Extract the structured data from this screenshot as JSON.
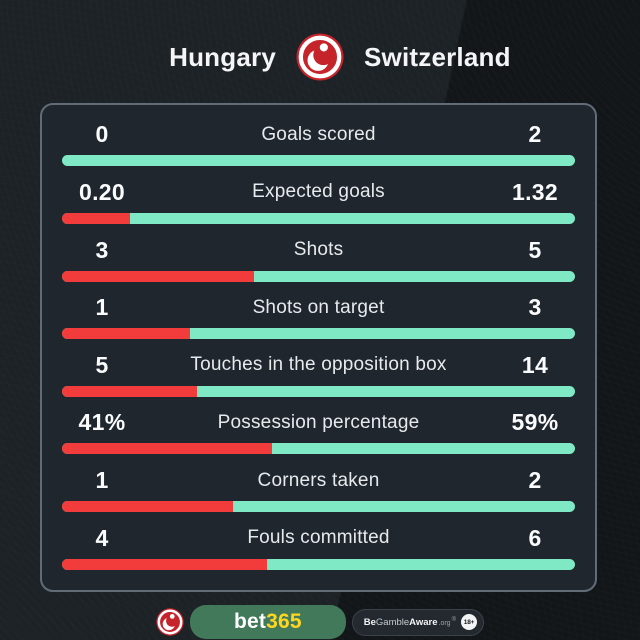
{
  "header": {
    "home_team": "Hungary",
    "away_team": "Switzerland"
  },
  "colors": {
    "home_bar": "#f23c3c",
    "away_bar": "#7fe9c5",
    "card_bg": "#1f262d",
    "card_border": "#626c76",
    "brand_red": "#c5242b",
    "brand_green": "#41795a",
    "brand_yellow": "#ffd61f"
  },
  "stats": [
    {
      "label": "Goals scored",
      "home": "0",
      "away": "2"
    },
    {
      "label": "Expected goals",
      "home": "0.20",
      "away": "1.32"
    },
    {
      "label": "Shots",
      "home": "3",
      "away": "5"
    },
    {
      "label": "Shots on target",
      "home": "1",
      "away": "3"
    },
    {
      "label": "Touches in the opposition box",
      "home": "5",
      "away": "14"
    },
    {
      "label": "Possession percentage",
      "home": "41%",
      "away": "59%"
    },
    {
      "label": "Corners taken",
      "home": "1",
      "away": "2"
    },
    {
      "label": "Fouls committed",
      "home": "4",
      "away": "6"
    }
  ],
  "footer": {
    "bet365_bet": "bet",
    "bet365_365": "365",
    "aware_be": "Be",
    "aware_gamble": "Gamble",
    "aware_aware": "Aware",
    "aware_org": ".org",
    "aware_reg": "®",
    "age_badge": "18+"
  },
  "chart_data": {
    "type": "bar",
    "orientation": "horizontal-paired",
    "title": "Hungary vs Switzerland match statistics",
    "categories": [
      "Goals scored",
      "Expected goals",
      "Shots",
      "Shots on target",
      "Touches in the opposition box",
      "Possession percentage",
      "Corners taken",
      "Fouls committed"
    ],
    "series": [
      {
        "name": "Hungary",
        "color": "#f23c3c",
        "values": [
          0,
          0.2,
          3,
          1,
          5,
          41,
          1,
          4
        ]
      },
      {
        "name": "Switzerland",
        "color": "#7fe9c5",
        "values": [
          2,
          1.32,
          5,
          3,
          14,
          59,
          2,
          6
        ]
      }
    ],
    "value_display": {
      "Possession percentage": "percent"
    },
    "bar_fill_rule": "home_share_of_total",
    "legend_position": "top-center-team-names",
    "grid": false
  }
}
